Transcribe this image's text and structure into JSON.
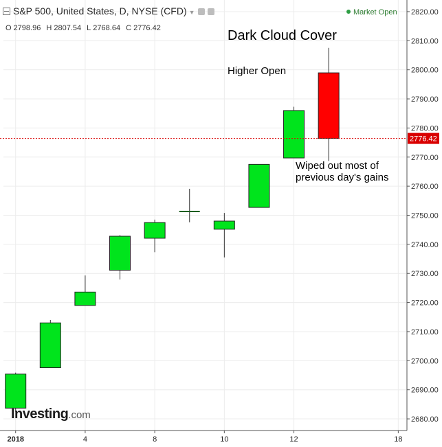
{
  "header": {
    "title": "S&P 500, United States, D, NYSE (CFD)",
    "ohlc": [
      {
        "key": "O",
        "value": "2798.96"
      },
      {
        "key": "H",
        "value": "2807.54"
      },
      {
        "key": "L",
        "value": "2768.64"
      },
      {
        "key": "C",
        "value": "2776.42"
      }
    ],
    "market_status": "Market Open"
  },
  "logo": {
    "main": "Investing",
    "suffix": ".com"
  },
  "colors": {
    "up": "#00e41c",
    "down": "#ff0000",
    "last_price": "#d90000",
    "grid": "#ececec"
  },
  "chart_data": {
    "type": "candlestick",
    "title": "S&P 500, United States, D, NYSE (CFD)",
    "y_ticks": [
      2680,
      2690,
      2700,
      2710,
      2720,
      2730,
      2740,
      2750,
      2760,
      2770,
      2780,
      2790,
      2800,
      2810,
      2820
    ],
    "ylim": [
      2676,
      2824
    ],
    "x_ticks": [
      {
        "label": "2018",
        "day": 0
      },
      {
        "label": "4",
        "day": 2
      },
      {
        "label": "8",
        "day": 4
      },
      {
        "label": "10",
        "day": 6
      },
      {
        "label": "12",
        "day": 8
      },
      {
        "label": "18",
        "day": 11
      }
    ],
    "xlim": [
      -0.35,
      11.25
    ],
    "candles": [
      {
        "day": 0,
        "open": 2683.7,
        "high": 2695.9,
        "low": 2682.4,
        "close": 2695.4
      },
      {
        "day": 1,
        "open": 2697.6,
        "high": 2714.0,
        "low": 2697.6,
        "close": 2713.0
      },
      {
        "day": 2,
        "open": 2719.0,
        "high": 2729.3,
        "low": 2719.0,
        "close": 2723.6
      },
      {
        "day": 3,
        "open": 2731.1,
        "high": 2743.2,
        "low": 2727.9,
        "close": 2742.8
      },
      {
        "day": 4,
        "open": 2742.1,
        "high": 2748.5,
        "low": 2737.3,
        "close": 2747.5
      },
      {
        "day": 5,
        "open": 2751.3,
        "high": 2759.1,
        "low": 2747.6,
        "close": 2751.0
      },
      {
        "day": 6,
        "open": 2745.2,
        "high": 2750.8,
        "low": 2735.5,
        "close": 2748.0
      },
      {
        "day": 7,
        "open": 2752.7,
        "high": 2767.5,
        "low": 2752.7,
        "close": 2767.5
      },
      {
        "day": 8,
        "open": 2769.7,
        "high": 2787.3,
        "low": 2769.7,
        "close": 2786.0
      },
      {
        "day": 9,
        "open": 2798.96,
        "high": 2807.54,
        "low": 2768.64,
        "close": 2776.42
      }
    ],
    "last_price": 2776.42,
    "last_price_label": "2776.42",
    "annotations": {
      "title": "Dark Cloud Cover",
      "higher_open": "Higher Open",
      "wiped_line1": "Wiped out most of",
      "wiped_line2": "previous day's gains"
    },
    "grid": true
  }
}
